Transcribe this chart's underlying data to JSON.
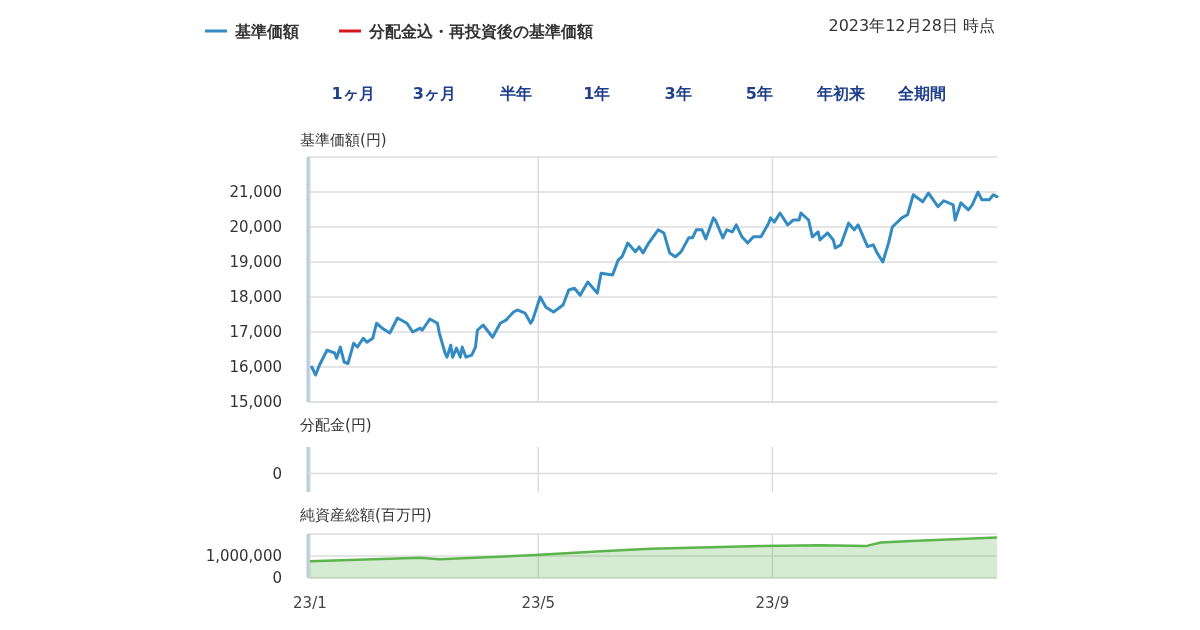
{
  "chart_data": [
    {
      "type": "line",
      "ylabel": "基準価額(円)",
      "legend": "top left",
      "grid": true,
      "tick_labels": "y",
      "annotations": [
        "2023年12月28日 時点",
        "1ヶ月",
        "3ヶ月",
        "半年",
        "1年",
        "3年",
        "5年",
        "年初来",
        "全期間"
      ],
      "xlim": [
        "2022-12-31",
        "2023-12-28"
      ],
      "xticks": [
        {
          "value": "2023-01-01",
          "label": null
        },
        {
          "value": "2023-05-01",
          "label": null
        },
        {
          "value": "2023-09-01",
          "label": null
        }
      ],
      "ylim": [
        15000,
        22000
      ],
      "yticks": [
        {
          "value": 15000,
          "label": "15,000"
        },
        {
          "value": 16000,
          "label": "16,000"
        },
        {
          "value": 17000,
          "label": "17,000"
        },
        {
          "value": 18000,
          "label": "18,000"
        },
        {
          "value": 19000,
          "label": "19,000"
        },
        {
          "value": 20000,
          "label": "20,000"
        },
        {
          "value": 21000,
          "label": "21,000"
        },
        {
          "value": 22000,
          "label": null
        }
      ],
      "x": [
        "2023-01-02",
        "2023-01-04",
        "2023-01-06",
        "2023-01-10",
        "2023-01-14",
        "2023-01-15",
        "2023-01-17",
        "2023-01-19",
        "2023-01-21",
        "2023-01-24",
        "2023-01-26",
        "2023-01-29",
        "2023-01-31",
        "2023-02-03",
        "2023-02-05",
        "2023-02-08",
        "2023-02-12",
        "2023-02-16",
        "2023-02-21",
        "2023-02-24",
        "2023-02-28",
        "2023-03-01",
        "2023-03-05",
        "2023-03-09",
        "2023-03-10",
        "2023-03-13",
        "2023-03-14",
        "2023-03-16",
        "2023-03-17",
        "2023-03-19",
        "2023-03-21",
        "2023-03-22",
        "2023-03-24",
        "2023-03-27",
        "2023-03-29",
        "2023-03-30",
        "2023-04-02",
        "2023-04-07",
        "2023-04-11",
        "2023-04-14",
        "2023-04-18",
        "2023-04-20",
        "2023-04-24",
        "2023-04-27",
        "2023-04-28",
        "2023-05-02",
        "2023-05-05",
        "2023-05-09",
        "2023-05-14",
        "2023-05-17",
        "2023-05-20",
        "2023-05-23",
        "2023-05-27",
        "2023-06-01",
        "2023-06-03",
        "2023-06-09",
        "2023-06-12",
        "2023-06-14",
        "2023-06-17",
        "2023-06-21",
        "2023-06-23",
        "2023-06-25",
        "2023-06-28",
        "2023-07-03",
        "2023-07-06",
        "2023-07-09",
        "2023-07-12",
        "2023-07-15",
        "2023-07-19",
        "2023-07-21",
        "2023-07-23",
        "2023-07-26",
        "2023-07-28",
        "2023-08-01",
        "2023-08-02",
        "2023-08-06",
        "2023-08-08",
        "2023-08-11",
        "2023-08-13",
        "2023-08-16",
        "2023-08-19",
        "2023-08-22",
        "2023-08-26",
        "2023-08-30",
        "2023-08-31",
        "2023-09-02",
        "2023-09-05",
        "2023-09-09",
        "2023-09-12",
        "2023-09-15",
        "2023-09-16",
        "2023-09-20",
        "2023-09-22",
        "2023-09-25",
        "2023-09-26",
        "2023-09-30",
        "2023-10-03",
        "2023-10-04",
        "2023-10-07",
        "2023-10-11",
        "2023-10-14",
        "2023-10-16",
        "2023-10-21",
        "2023-10-24",
        "2023-10-26",
        "2023-10-29",
        "2023-11-01",
        "2023-11-03",
        "2023-11-08",
        "2023-11-11",
        "2023-11-14",
        "2023-11-19",
        "2023-11-22",
        "2023-11-27",
        "2023-11-30",
        "2023-12-05",
        "2023-12-06",
        "2023-12-09",
        "2023-12-13",
        "2023-12-15",
        "2023-12-18",
        "2023-12-20",
        "2023-12-24",
        "2023-12-26",
        "2023-12-28"
      ],
      "series": [
        {
          "name": "基準価額",
          "color": "#338bc2",
          "values": [
            16000,
            15770,
            16050,
            16480,
            16400,
            16250,
            16570,
            16140,
            16100,
            16680,
            16570,
            16820,
            16710,
            16820,
            17250,
            17110,
            16970,
            17400,
            17250,
            17000,
            17110,
            17050,
            17370,
            17250,
            16970,
            16400,
            16280,
            16620,
            16280,
            16540,
            16280,
            16570,
            16280,
            16340,
            16570,
            17050,
            17200,
            16850,
            17250,
            17340,
            17570,
            17630,
            17540,
            17250,
            17340,
            18000,
            17710,
            17570,
            17770,
            18200,
            18250,
            18050,
            18430,
            18110,
            18680,
            18630,
            19060,
            19150,
            19540,
            19290,
            19430,
            19260,
            19540,
            19920,
            19830,
            19260,
            19150,
            19290,
            19690,
            19690,
            19920,
            19920,
            19660,
            20260,
            20200,
            19690,
            19920,
            19860,
            20060,
            19720,
            19540,
            19720,
            19720,
            20110,
            20260,
            20140,
            20400,
            20060,
            20200,
            20200,
            20400,
            20200,
            19720,
            19860,
            19630,
            19830,
            19630,
            19400,
            19490,
            20110,
            19920,
            20060,
            19440,
            19490,
            19260,
            19000,
            19540,
            20000,
            20260,
            20350,
            20920,
            20720,
            20970,
            20580,
            20750,
            20630,
            20200,
            20690,
            20490,
            20630,
            21000,
            20780,
            20780,
            20920,
            20870
          ]
        },
        {
          "name": "分配金込・再投資後の基準価額",
          "color": "#d7191c",
          "values": [
            null,
            null,
            null,
            null,
            null,
            null,
            null,
            null,
            null,
            null,
            null,
            null,
            null,
            null,
            null,
            null,
            null,
            null,
            null,
            null,
            null,
            null,
            null,
            null,
            null,
            null,
            null,
            null,
            null,
            null,
            null,
            null,
            null,
            null,
            null,
            null,
            null,
            null,
            null,
            null,
            null,
            null,
            null,
            null,
            null,
            null,
            null,
            null,
            null,
            null,
            null,
            null,
            null,
            null,
            null,
            null,
            null,
            null,
            null,
            null,
            null,
            null,
            null,
            null,
            null,
            null,
            null,
            null,
            null,
            null,
            null,
            null,
            null,
            null,
            null,
            null,
            null,
            null,
            null,
            null,
            null,
            null,
            null,
            null,
            null,
            null,
            null,
            null,
            null,
            null,
            null,
            null,
            null,
            null,
            null,
            null,
            null,
            null,
            null,
            null,
            null,
            null,
            null,
            null,
            null,
            null,
            null,
            null,
            null,
            null,
            null,
            null,
            null,
            null,
            null,
            null,
            null,
            null,
            null,
            null,
            null,
            null,
            null,
            null,
            null
          ]
        }
      ]
    },
    {
      "type": "other",
      "ylabel": "分配金(円)",
      "annotations": [
        "0"
      ]
    },
    {
      "type": "area",
      "ylabel": "純資産総額(百万円)",
      "grid": true,
      "xlim": [
        "2022-12-31",
        "2023-12-28"
      ],
      "xticks": [
        {
          "value": "2023-01-01",
          "label": "23/1"
        },
        {
          "value": "2023-05-01",
          "label": "23/5"
        },
        {
          "value": "2023-09-01",
          "label": "23/9"
        }
      ],
      "ylim": [
        0,
        2000000
      ],
      "yticks": [
        0,
        {
          "value": 1000000,
          "label": "1,000,000"
        },
        {
          "value": 2000000,
          "label": null
        }
      ],
      "x": [
        "2023-01-01",
        "2023-02-28",
        "2023-03-10",
        "2023-04-27",
        "2023-06-03",
        "2023-06-29",
        "2023-08-26",
        "2023-09-26",
        "2023-10-20",
        "2023-10-28",
        "2023-11-13",
        "2023-12-28"
      ],
      "color": "#5cb54c",
      "values": [
        760000,
        920000,
        850000,
        1030000,
        1220000,
        1330000,
        1450000,
        1490000,
        1450000,
        1610000,
        1680000,
        1840000
      ]
    }
  ]
}
